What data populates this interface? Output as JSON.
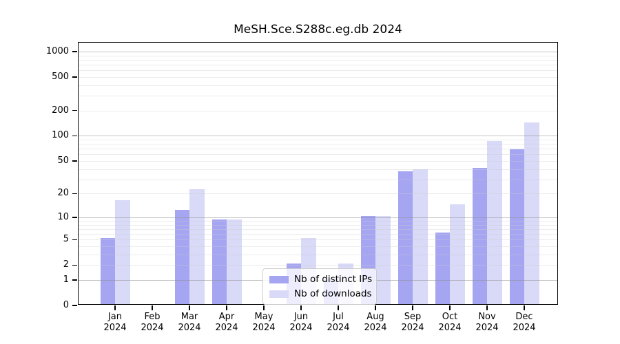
{
  "title": "MeSH.Sce.S288c.eg.db 2024",
  "colors": {
    "ips_bar": "#a5a5f2",
    "downloads_bar": "#d9d9f8",
    "grid_major": "#bdbdbd",
    "grid_minor": "#ececec",
    "axis": "#000000",
    "legend_border": "#cccccc"
  },
  "chart_data": {
    "type": "bar",
    "title": "MeSH.Sce.S288c.eg.db 2024",
    "categories": [
      "Jan 2024",
      "Feb 2024",
      "Mar 2024",
      "Apr 2024",
      "May 2024",
      "Jun 2024",
      "Jul 2024",
      "Aug 2024",
      "Sep 2024",
      "Oct 2024",
      "Nov 2024",
      "Dec 2024"
    ],
    "months": [
      "Jan",
      "Feb",
      "Mar",
      "Apr",
      "May",
      "Jun",
      "Jul",
      "Aug",
      "Sep",
      "Oct",
      "Nov",
      "Dec"
    ],
    "year_label": "2024",
    "series": [
      {
        "name": "Nb of distinct IPs",
        "color": "#a5a5f2",
        "values": [
          5,
          0,
          12,
          9,
          0,
          2,
          1,
          10,
          36,
          6,
          40,
          66
        ]
      },
      {
        "name": "Nb of downloads",
        "color": "#d9d9f8",
        "values": [
          16,
          0,
          22,
          9,
          0,
          5,
          2,
          10,
          38,
          14,
          83,
          138
        ]
      }
    ],
    "y_scale": "log1p",
    "y_ticks": [
      0,
      1,
      2,
      5,
      10,
      20,
      50,
      100,
      200,
      500,
      1000
    ],
    "grid_major_values": [
      1,
      10,
      100,
      1000
    ],
    "grid_minor_values": [
      2,
      3,
      4,
      5,
      6,
      7,
      8,
      9,
      20,
      30,
      40,
      50,
      60,
      70,
      80,
      90,
      200,
      300,
      400,
      500,
      600,
      700,
      800,
      900
    ],
    "ylim": [
      0,
      1275
    ],
    "xlabel": "",
    "ylabel": "",
    "grid": "on",
    "legend": {
      "position": "lower-center",
      "entries": [
        "Nb of distinct IPs",
        "Nb of downloads"
      ]
    }
  }
}
